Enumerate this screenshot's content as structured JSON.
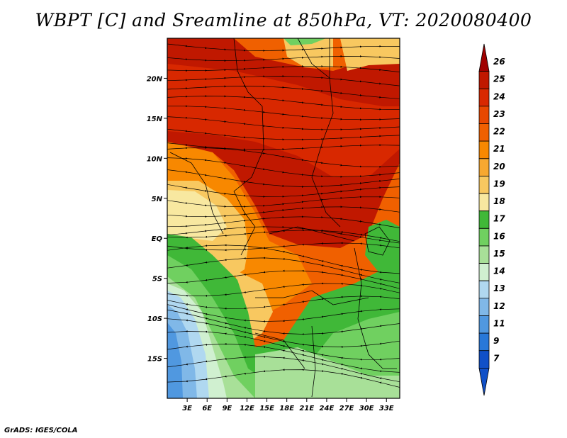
{
  "title": "WBPT [C] and Sreamline at 850hPa, VT: 2020080400",
  "footer": "GrADS: IGES/COLA",
  "map": {
    "lon_range": [
      0,
      35
    ],
    "lat_range": [
      -20,
      25
    ],
    "lon_ticks": [
      "3E",
      "6E",
      "9E",
      "12E",
      "15E",
      "18E",
      "21E",
      "24E",
      "27E",
      "30E",
      "33E"
    ],
    "lon_tick_values": [
      3,
      6,
      9,
      12,
      15,
      18,
      21,
      24,
      27,
      30,
      33
    ],
    "lat_ticks": [
      "20N",
      "15N",
      "10N",
      "5N",
      "EQ",
      "5S",
      "10S",
      "15S"
    ],
    "lat_tick_values": [
      20,
      15,
      10,
      5,
      0,
      -5,
      -10,
      -15
    ]
  },
  "colorbar": {
    "labels": [
      "26",
      "25",
      "24",
      "23",
      "22",
      "21",
      "20",
      "19",
      "18",
      "17",
      "16",
      "15",
      "14",
      "13",
      "12",
      "11",
      "9",
      "7"
    ],
    "colors": [
      "#a00000",
      "#c01800",
      "#d82800",
      "#e84800",
      "#f06000",
      "#f88800",
      "#f8a830",
      "#f8c860",
      "#f8e8a0",
      "#40b838",
      "#70d060",
      "#a8e098",
      "#d0f0d0",
      "#b0d8f0",
      "#80b8e8",
      "#5098e0",
      "#2878d8",
      "#1050c8",
      "#1050c8"
    ]
  }
}
